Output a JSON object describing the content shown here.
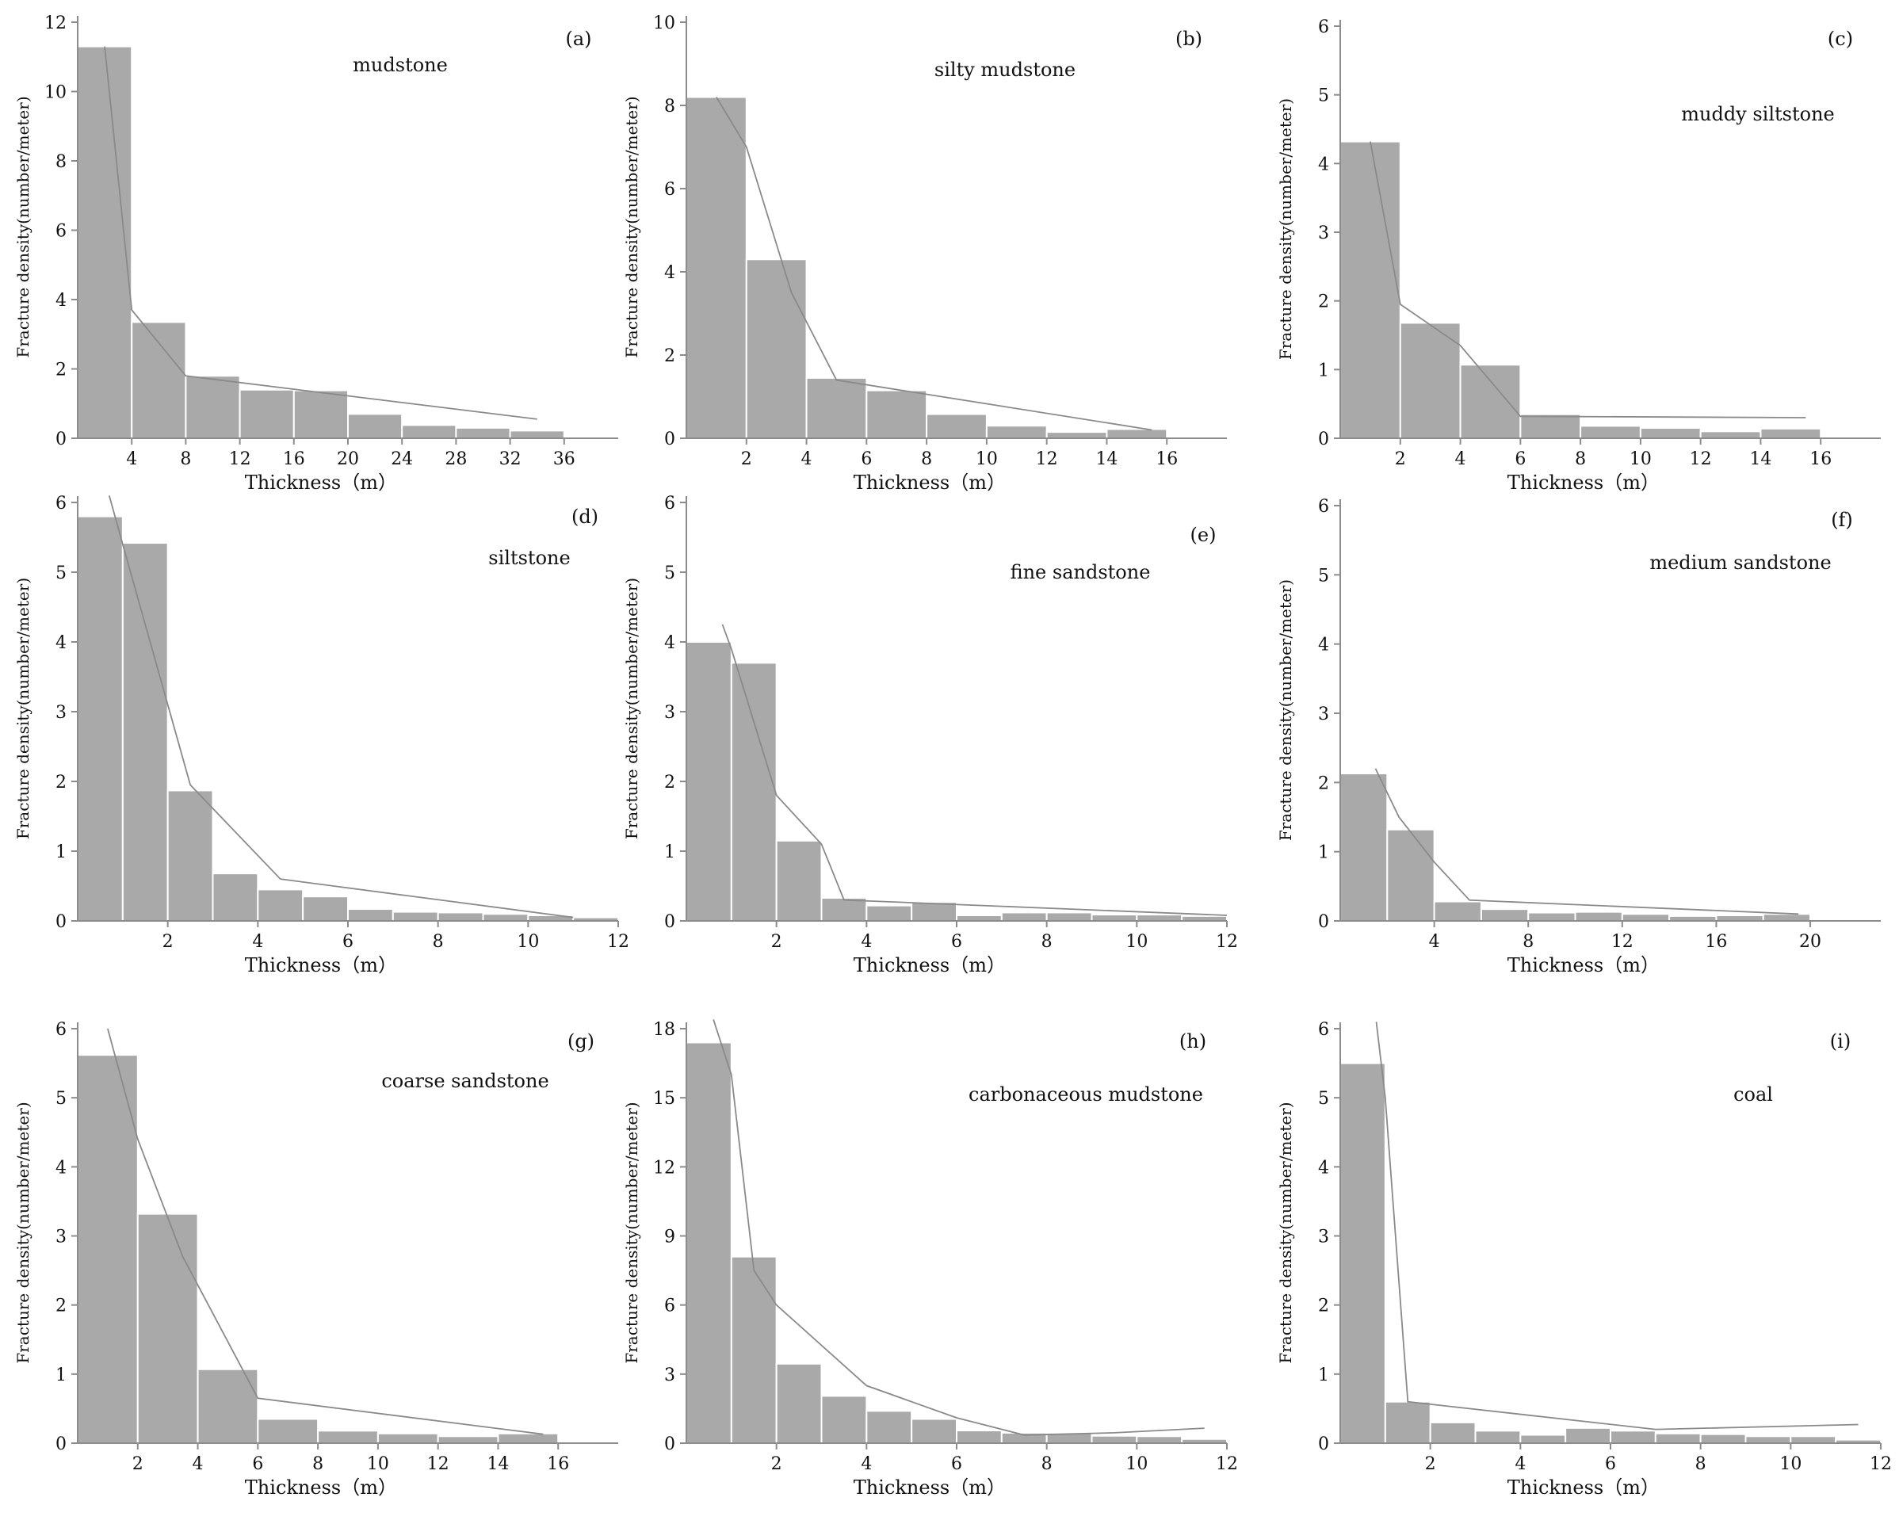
{
  "chart_data": [
    {
      "panel": "(a)",
      "type": "bar",
      "title": "mudstone",
      "xlabel": "Thickness（m）",
      "ylabel": "Fracture density(number/meter)",
      "xlim": [
        0,
        40
      ],
      "ylim": [
        0,
        12
      ],
      "xticks": [
        4,
        8,
        12,
        16,
        20,
        24,
        28,
        32,
        36
      ],
      "yticks": [
        0,
        2,
        4,
        6,
        8,
        10,
        12
      ],
      "bins": [
        [
          0,
          4
        ],
        [
          4,
          8
        ],
        [
          8,
          12
        ],
        [
          12,
          16
        ],
        [
          16,
          20
        ],
        [
          20,
          24
        ],
        [
          24,
          28
        ],
        [
          28,
          32
        ],
        [
          32,
          36
        ]
      ],
      "values": [
        11.3,
        3.35,
        1.8,
        1.4,
        1.38,
        0.7,
        0.38,
        0.3,
        0.22
      ],
      "trend": [
        [
          2,
          11.3
        ],
        [
          4,
          3.7
        ],
        [
          8,
          1.8
        ],
        [
          34,
          0.55
        ]
      ]
    },
    {
      "panel": "(b)",
      "type": "bar",
      "title": "silty mudstone",
      "xlabel": "Thickness（m）",
      "ylabel": "Fracture density(number/meter)",
      "xlim": [
        0,
        18
      ],
      "ylim": [
        0,
        10
      ],
      "xticks": [
        2,
        4,
        6,
        8,
        10,
        12,
        14,
        16
      ],
      "yticks": [
        0,
        2,
        4,
        6,
        8,
        10
      ],
      "bins": [
        [
          0,
          2
        ],
        [
          2,
          4
        ],
        [
          4,
          6
        ],
        [
          6,
          8
        ],
        [
          8,
          10
        ],
        [
          10,
          12
        ],
        [
          12,
          14
        ],
        [
          14,
          16
        ]
      ],
      "values": [
        8.2,
        4.3,
        1.45,
        1.15,
        0.58,
        0.3,
        0.15,
        0.22
      ],
      "trend": [
        [
          1,
          8.2
        ],
        [
          2,
          7.0
        ],
        [
          3.5,
          3.5
        ],
        [
          5,
          1.4
        ],
        [
          15.5,
          0.2
        ]
      ]
    },
    {
      "panel": "(c)",
      "type": "bar",
      "title": "muddy siltstone",
      "xlabel": "Thickness（m）",
      "ylabel": "Fracture density(number/meter)",
      "xlim": [
        0,
        18
      ],
      "ylim": [
        0,
        6
      ],
      "xticks": [
        2,
        4,
        6,
        8,
        10,
        12,
        14,
        16
      ],
      "yticks": [
        0,
        1,
        2,
        3,
        4,
        5,
        6
      ],
      "bins": [
        [
          0,
          2
        ],
        [
          2,
          4
        ],
        [
          4,
          6
        ],
        [
          6,
          8
        ],
        [
          8,
          10
        ],
        [
          10,
          12
        ],
        [
          12,
          14
        ],
        [
          14,
          16
        ]
      ],
      "values": [
        4.32,
        1.68,
        1.07,
        0.35,
        0.18,
        0.15,
        0.1,
        0.14
      ],
      "trend": [
        [
          1,
          4.32
        ],
        [
          2,
          1.95
        ],
        [
          4,
          1.35
        ],
        [
          6,
          0.32
        ],
        [
          15.5,
          0.3
        ]
      ]
    },
    {
      "panel": "(d)",
      "type": "bar",
      "title": "siltstone",
      "xlabel": "Thickness（m）",
      "ylabel": "Fracture density(number/meter)",
      "xlim": [
        0,
        12
      ],
      "ylim": [
        0,
        6
      ],
      "xticks": [
        2,
        4,
        6,
        8,
        10,
        12
      ],
      "yticks": [
        0,
        1,
        2,
        3,
        4,
        5,
        6
      ],
      "bins": [
        [
          0,
          1
        ],
        [
          1,
          2
        ],
        [
          2,
          3
        ],
        [
          3,
          4
        ],
        [
          4,
          5
        ],
        [
          5,
          6
        ],
        [
          6,
          7
        ],
        [
          7,
          8
        ],
        [
          8,
          9
        ],
        [
          9,
          10
        ],
        [
          10,
          11
        ],
        [
          11,
          12
        ]
      ],
      "values": [
        5.8,
        5.42,
        1.87,
        0.68,
        0.45,
        0.35,
        0.17,
        0.13,
        0.12,
        0.1,
        0.08,
        0.05
      ],
      "trend": [
        [
          0.7,
          6.1
        ],
        [
          1,
          5.4
        ],
        [
          2,
          3.1
        ],
        [
          2.5,
          1.95
        ],
        [
          4.5,
          0.6
        ],
        [
          11,
          0.05
        ]
      ]
    },
    {
      "panel": "(e)",
      "type": "bar",
      "title": "fine sandstone",
      "xlabel": "Thickness（m）",
      "ylabel": "Fracture density(number/meter)",
      "xlim": [
        0,
        12
      ],
      "ylim": [
        0,
        6
      ],
      "xticks": [
        2,
        4,
        6,
        8,
        10,
        12
      ],
      "yticks": [
        0,
        1,
        2,
        3,
        4,
        5,
        6
      ],
      "bins": [
        [
          0,
          1
        ],
        [
          1,
          2
        ],
        [
          2,
          3
        ],
        [
          3,
          4
        ],
        [
          4,
          5
        ],
        [
          5,
          6
        ],
        [
          6,
          7
        ],
        [
          7,
          8
        ],
        [
          8,
          9
        ],
        [
          9,
          10
        ],
        [
          10,
          11
        ],
        [
          11,
          12
        ]
      ],
      "values": [
        4.0,
        3.7,
        1.15,
        0.33,
        0.22,
        0.27,
        0.08,
        0.12,
        0.12,
        0.09,
        0.09,
        0.07
      ],
      "trend": [
        [
          0.8,
          4.25
        ],
        [
          1,
          3.9
        ],
        [
          2,
          1.8
        ],
        [
          3,
          1.1
        ],
        [
          3.5,
          0.3
        ],
        [
          12,
          0.08
        ]
      ]
    },
    {
      "panel": "(f)",
      "type": "bar",
      "title": "medium sandstone",
      "xlabel": "Thickness（m）",
      "ylabel": "Fracture density(number/meter)",
      "xlim": [
        0,
        23
      ],
      "ylim": [
        0,
        6
      ],
      "xticks": [
        4,
        8,
        12,
        16,
        20
      ],
      "yticks": [
        0,
        1,
        2,
        3,
        4,
        5,
        6
      ],
      "bins": [
        [
          0,
          2
        ],
        [
          2,
          4
        ],
        [
          4,
          6
        ],
        [
          6,
          8
        ],
        [
          8,
          10
        ],
        [
          10,
          12
        ],
        [
          12,
          14
        ],
        [
          14,
          16
        ],
        [
          16,
          18
        ],
        [
          18,
          20
        ]
      ],
      "values": [
        2.13,
        1.32,
        0.28,
        0.17,
        0.12,
        0.13,
        0.1,
        0.07,
        0.08,
        0.1
      ],
      "trend": [
        [
          1.5,
          2.2
        ],
        [
          2.5,
          1.5
        ],
        [
          4,
          0.85
        ],
        [
          5.5,
          0.3
        ],
        [
          19.5,
          0.1
        ]
      ]
    },
    {
      "panel": "(g)",
      "type": "bar",
      "title": "coarse sandstone",
      "xlabel": "Thickness（m）",
      "ylabel": "Fracture density(number/meter)",
      "xlim": [
        0,
        18
      ],
      "ylim": [
        0,
        6
      ],
      "xticks": [
        2,
        4,
        6,
        8,
        10,
        12,
        14,
        16
      ],
      "yticks": [
        0,
        1,
        2,
        3,
        4,
        5,
        6
      ],
      "bins": [
        [
          0,
          2
        ],
        [
          2,
          4
        ],
        [
          4,
          6
        ],
        [
          6,
          8
        ],
        [
          8,
          10
        ],
        [
          10,
          12
        ],
        [
          12,
          14
        ],
        [
          14,
          16
        ]
      ],
      "values": [
        5.62,
        3.32,
        1.07,
        0.35,
        0.18,
        0.14,
        0.1,
        0.14
      ],
      "trend": [
        [
          1,
          6.0
        ],
        [
          2,
          4.4
        ],
        [
          3.5,
          2.7
        ],
        [
          6,
          0.65
        ],
        [
          15.5,
          0.13
        ]
      ]
    },
    {
      "panel": "(h)",
      "type": "bar",
      "title": "carbonaceous mudstone",
      "xlabel": "Thickness（m）",
      "ylabel": "Fracture density(number/meter)",
      "xlim": [
        0,
        12
      ],
      "ylim": [
        0,
        18
      ],
      "xticks": [
        2,
        4,
        6,
        8,
        10,
        12
      ],
      "yticks": [
        0,
        3,
        6,
        9,
        12,
        15,
        18
      ],
      "bins": [
        [
          0,
          1
        ],
        [
          1,
          2
        ],
        [
          2,
          3
        ],
        [
          3,
          4
        ],
        [
          4,
          5
        ],
        [
          5,
          6
        ],
        [
          6,
          7
        ],
        [
          7,
          8
        ],
        [
          8,
          9
        ],
        [
          9,
          10
        ],
        [
          10,
          11
        ],
        [
          11,
          12
        ]
      ],
      "values": [
        17.4,
        8.1,
        3.45,
        2.05,
        1.4,
        1.05,
        0.55,
        0.45,
        0.45,
        0.32,
        0.3,
        0.18
      ],
      "trend": [
        [
          0.6,
          18.4
        ],
        [
          1,
          16.0
        ],
        [
          1.5,
          7.5
        ],
        [
          2,
          6.0
        ],
        [
          4,
          2.5
        ],
        [
          6,
          1.1
        ],
        [
          7.5,
          0.35
        ],
        [
          9.5,
          0.45
        ],
        [
          11.5,
          0.65
        ]
      ]
    },
    {
      "panel": "(i)",
      "type": "bar",
      "title": "coal",
      "xlabel": "Thickness（m）",
      "ylabel": "Fracture density(number/meter)",
      "xlim": [
        0,
        12
      ],
      "ylim": [
        0,
        6
      ],
      "xticks": [
        2,
        4,
        6,
        8,
        10,
        12
      ],
      "yticks": [
        0,
        1,
        2,
        3,
        4,
        5,
        6
      ],
      "bins": [
        [
          0,
          1
        ],
        [
          1,
          2
        ],
        [
          2,
          3
        ],
        [
          3,
          4
        ],
        [
          4,
          5
        ],
        [
          5,
          6
        ],
        [
          6,
          7
        ],
        [
          7,
          8
        ],
        [
          8,
          9
        ],
        [
          9,
          10
        ],
        [
          10,
          11
        ],
        [
          11,
          12
        ]
      ],
      "values": [
        5.5,
        0.6,
        0.3,
        0.18,
        0.12,
        0.22,
        0.18,
        0.14,
        0.13,
        0.1,
        0.1,
        0.05
      ],
      "trend": [
        [
          0.8,
          6.1
        ],
        [
          1,
          5.0
        ],
        [
          1.5,
          0.6
        ],
        [
          7,
          0.2
        ],
        [
          11.5,
          0.27
        ]
      ]
    }
  ]
}
